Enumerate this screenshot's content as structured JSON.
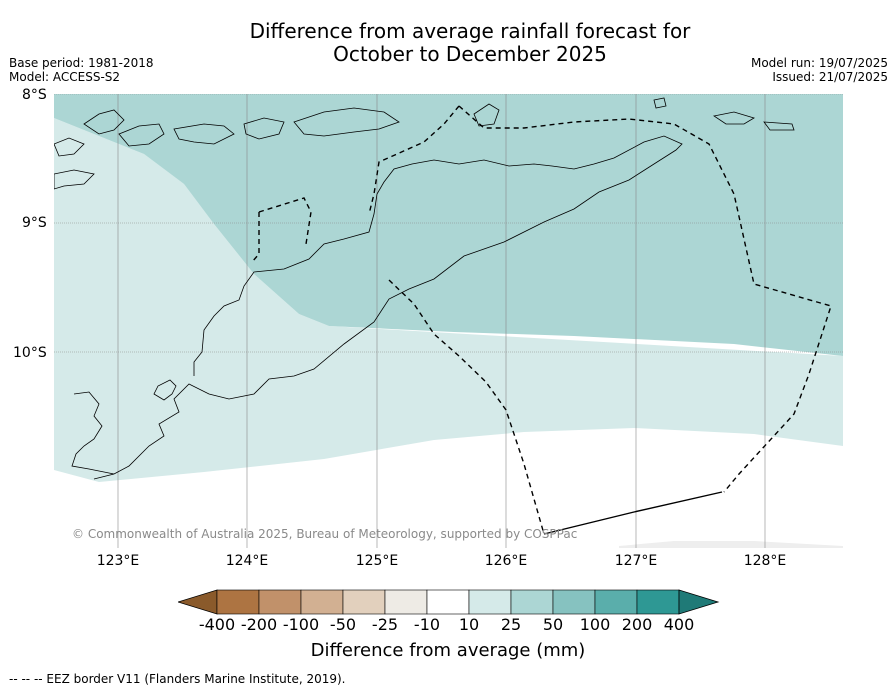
{
  "title_line1": "Difference from average rainfall forecast for",
  "title_line2": "October to December 2025",
  "meta_left": {
    "base_period": "Base period: 1981-2018",
    "model": "Model: ACCESS-S2"
  },
  "meta_right": {
    "model_run": "Model run: 19/07/2025",
    "issued": "Issued: 21/07/2025"
  },
  "latitudes": [
    "8°S",
    "9°S",
    "10°S"
  ],
  "longitudes": [
    "123°E",
    "124°E",
    "125°E",
    "126°E",
    "127°E",
    "128°E"
  ],
  "copyright": "© Commonwealth of Australia 2025, Bureau of Meteorology, supported by COSPPac",
  "colorbar": {
    "ticks": [
      "-400",
      "-200",
      "-100",
      "-50",
      "-25",
      "-10",
      "10",
      "25",
      "50",
      "100",
      "200",
      "400"
    ],
    "colors": [
      "#8a5a2b",
      "#ad7442",
      "#c1916a",
      "#d2b092",
      "#e2d0bd",
      "#eeebe5",
      "#ffffff",
      "#d5eae9",
      "#acd6d4",
      "#86c2c0",
      "#5aaeab",
      "#2e9894",
      "#1f7a77"
    ],
    "label": "Difference from average (mm)"
  },
  "map_colors": {
    "band_10_25": "#d5eae9",
    "band_25_50": "#acd6d4",
    "band_above_10_south": "#eeeeee"
  },
  "footnote": "--  --  -- EEZ border V11 (Flanders Marine Institute, 2019)."
}
